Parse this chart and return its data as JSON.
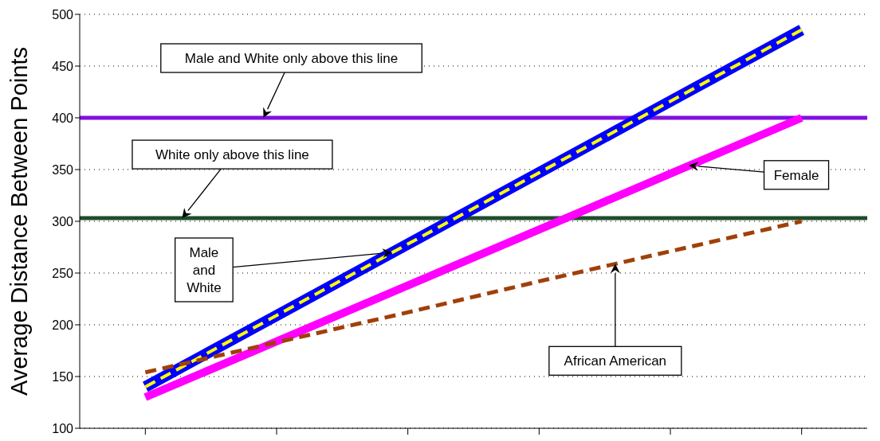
{
  "chart_data": {
    "type": "line",
    "ylabel": "Average Distance Between Points",
    "categories": [
      null,
      null,
      null,
      null,
      null,
      null
    ],
    "ylim": [
      100,
      500
    ],
    "yticks": [
      100,
      150,
      200,
      250,
      300,
      350,
      400,
      450,
      500
    ],
    "grid": "y",
    "series": [
      {
        "color": "#0000ff",
        "values": [
          140,
          209,
          278,
          347,
          416,
          485
        ],
        "line_style": "solid"
      },
      {
        "color": "#ffff00",
        "values": [
          140,
          209,
          278,
          347,
          416,
          485
        ],
        "line_style": "dashed"
      },
      {
        "color": "#ff00ff",
        "values": [
          130,
          184,
          238,
          292,
          346,
          400
        ],
        "line_style": "solid"
      },
      {
        "color": "#a0400a",
        "values": [
          154,
          183,
          212,
          242,
          271,
          300
        ],
        "line_style": "dashed"
      }
    ],
    "ref_lines": [
      {
        "axis": "y",
        "value": 400,
        "color": "#8010e0"
      },
      {
        "axis": "y",
        "value": 303,
        "color": "#1e4d2b"
      }
    ],
    "annotations": [
      "Male and White only above this line",
      "White only above this line",
      "Male and White",
      "Female",
      "African American"
    ]
  }
}
